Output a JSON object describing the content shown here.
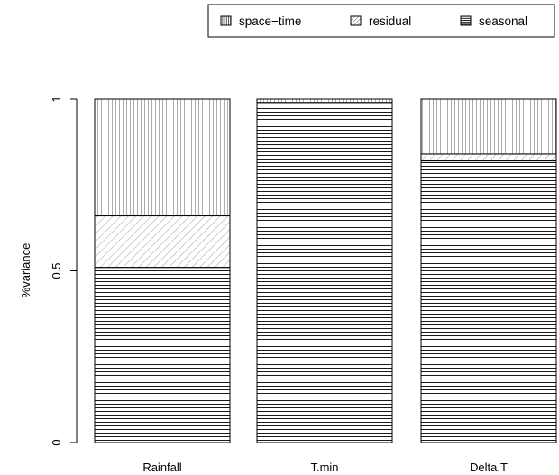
{
  "chart_data": {
    "type": "bar",
    "stacked": true,
    "categories": [
      "Rainfall",
      "T.min",
      "Delta.T"
    ],
    "series": [
      {
        "name": "seasonal",
        "values": [
          0.51,
          0.99,
          0.82
        ],
        "pattern": "horizontal"
      },
      {
        "name": "residual",
        "values": [
          0.15,
          0.0,
          0.02
        ],
        "pattern": "diagonal"
      },
      {
        "name": "space−time",
        "values": [
          0.34,
          0.01,
          0.16
        ],
        "pattern": "vertical"
      }
    ],
    "legend_order": [
      "space−time",
      "residual",
      "seasonal"
    ],
    "ylabel": "%variance",
    "xlabel": "",
    "ylim": [
      0,
      1
    ],
    "yticks": [
      {
        "value": 0,
        "label": "0"
      },
      {
        "value": 0.5,
        "label": "0.5"
      },
      {
        "value": 1,
        "label": "1"
      }
    ],
    "legend_position": "top-right",
    "grid": false
  }
}
